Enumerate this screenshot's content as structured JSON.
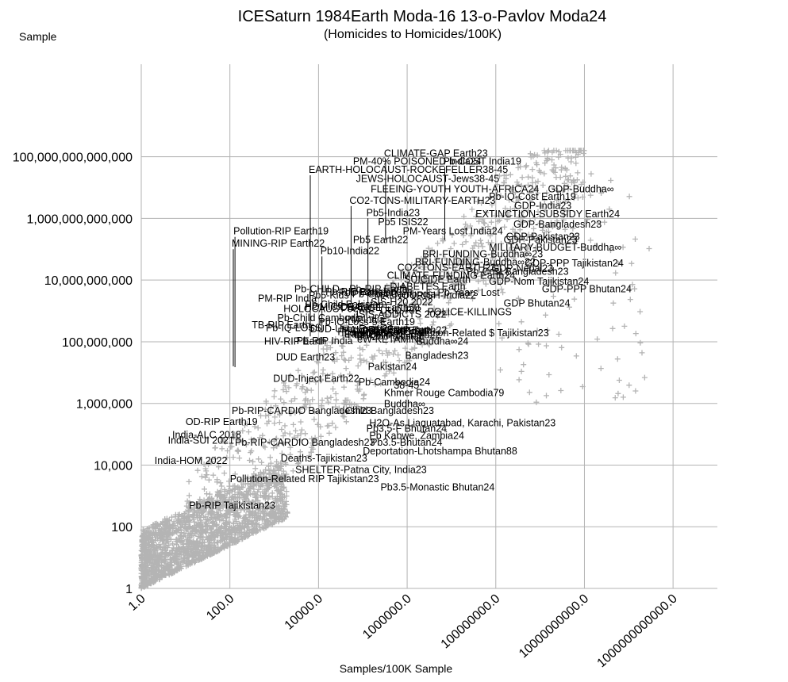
{
  "chart_data": {
    "type": "scatter",
    "title": "ICESaturn 1984Earth Moda-16 13-o-Pavlov Moda24",
    "subtitle": "(Homicides to Homicides/100K)",
    "xlabel": "Samples/100K Sample",
    "ylabel": "Sample",
    "x_scale": "log",
    "y_scale": "log",
    "xlim": [
      1,
      10000000000000
    ],
    "ylim": [
      1,
      100000000000000000
    ],
    "x_tick_values": [
      1,
      100,
      10000,
      1000000,
      100000000,
      10000000000,
      1000000000000
    ],
    "x_tick_labels": [
      "1.0",
      "100.0",
      "10000.0",
      "1000000.0",
      "100000000.0",
      "10000000000.0",
      "1000000000000.0"
    ],
    "y_tick_values": [
      1,
      100,
      10000,
      1000000,
      100000000,
      10000000000,
      1000000000000,
      100000000000000
    ],
    "y_tick_labels": [
      "1",
      "100",
      "10,000",
      "1,000,000",
      "100,000,000",
      "10,000,000,000",
      "1,000,000,000,000",
      "100,000,000,000,000"
    ],
    "grid": true,
    "marker": "+",
    "marker_color": "#b4b4b4",
    "grid_color": "#b3b3b3",
    "axis_color": "#b3b3b3",
    "scatter_points": {
      "count": 2600,
      "regions": [
        {
          "name": "core",
          "n": 1700,
          "log10x": [
            0,
            3.3
          ],
          "log10y": [
            0,
            4.2
          ]
        },
        {
          "name": "diagonal",
          "n": 800,
          "log10x": [
            1,
            10
          ],
          "log10y": [
            2,
            14
          ]
        },
        {
          "name": "upper-right",
          "n": 100,
          "log10x": [
            8,
            11.5
          ],
          "log10y": [
            6,
            13.5
          ]
        }
      ]
    },
    "annotations": [
      {
        "text": "CLIMATE-GAP Earth23",
        "x": 300000.0,
        "y": 100000000000000.0,
        "pin_y": 200000000000.0
      },
      {
        "text": "PM-40% POISONED India24",
        "x": 60000.0,
        "y": 55000000000000.0
      },
      {
        "text": "Pb-COST India19",
        "x": 6500000.0,
        "y": 55000000000000.0,
        "pin_y": 200000000000.0
      },
      {
        "text": "EARTH-HOLOCAUST-ROCKEFELLER38-45",
        "x": 6000.0,
        "y": 30000000000000.0,
        "pin_y": 150000000.0
      },
      {
        "text": "JEWS-HOLOCAUST-Jews38-45",
        "x": 70000.0,
        "y": 15000000000000.0
      },
      {
        "text": "GDP-Buddha∞",
        "x": 1500000000.0,
        "y": 7000000000000.0
      },
      {
        "text": "FLEEING-YOUTH YOUTH-AFRICA24",
        "x": 150000.0,
        "y": 7000000000000.0
      },
      {
        "text": "Pb-IQ-Cost Earth19",
        "x": 70000000.0,
        "y": 4000000000000.0
      },
      {
        "text": "CO2-TONS-MILITARY-EARTH23",
        "x": 50000.0,
        "y": 3000000000000.0,
        "pin_y": 2000000000.0
      },
      {
        "text": "GDP-India23",
        "x": 260000000.0,
        "y": 2000000000000.0
      },
      {
        "text": "Pb5-India23",
        "x": 120000.0,
        "y": 1200000000000.0,
        "pin_y": 1500000000.0
      },
      {
        "text": "EXTINCTION-SUBSIDY Earth24",
        "x": 35000000.0,
        "y": 1100000000000.0
      },
      {
        "text": "Pb5 ISIS22",
        "x": 220000.0,
        "y": 600000000000.0
      },
      {
        "text": "GDP-Bangladesh23",
        "x": 250000000.0,
        "y": 500000000000.0
      },
      {
        "text": "Pollution-RIP Earth19",
        "x": 120,
        "y": 300000000000.0,
        "pin_y": 15000000.0
      },
      {
        "text": "PM-Years Lost India24",
        "x": 800000.0,
        "y": 300000000000.0
      },
      {
        "text": "GDP-Pakistan23",
        "x": 170000000.0,
        "y": 200000000000.0
      },
      {
        "text": "Pb5 Earth22",
        "x": 60000.0,
        "y": 160000000000.0
      },
      {
        "text": "GDP-Pakistan23",
        "x": 150000000.0,
        "y": 160000000000.0
      },
      {
        "text": "MINING-RIP Earth22",
        "x": 110,
        "y": 120000000000.0,
        "pin_y": 16000000.0
      },
      {
        "text": "MILITARY-BUDGET-Buddha∞",
        "x": 70000000.0,
        "y": 90000000000.0
      },
      {
        "text": "Pb10-India22",
        "x": 11000.0,
        "y": 70000000000.0,
        "pin_y": 200000000.0
      },
      {
        "text": "BRI-FUNDING-Buddha∞23",
        "x": 2200000.0,
        "y": 55000000000.0
      },
      {
        "text": "BRI-FUNDING-Buddha∞22",
        "x": 1500000.0,
        "y": 30000000000.0
      },
      {
        "text": "GDP-PPP Tajikistan24",
        "x": 450000000.0,
        "y": 28000000000.0
      },
      {
        "text": "CO2-TONS-EARTH23",
        "x": 600000.0,
        "y": 20000000000.0
      },
      {
        "text": "GDP-Nepal23",
        "x": 80000000.0,
        "y": 19000000000.0
      },
      {
        "text": "Pb-Cost Bangladesh23",
        "x": 22000000.0,
        "y": 15000000000.0
      },
      {
        "text": "CLIMATE-FUNDING Earth24",
        "x": 350000.0,
        "y": 11000000000.0
      },
      {
        "text": "GDP-Nom Tajikistan24",
        "x": 70000000.0,
        "y": 7000000000.0
      },
      {
        "text": "GDP-PPP Bhutan24",
        "x": 1100000000.0,
        "y": 4000000000.0
      },
      {
        "text": "MALNOURISH-India22",
        "x": 180000.0,
        "y": 2500000000.0
      },
      {
        "text": "SIS-H20 2022",
        "x": 150000.0,
        "y": 1500000000.0
      },
      {
        "text": "GDP Bhutan24",
        "x": 150000000.0,
        "y": 1400000000.0
      },
      {
        "text": "CHANGE Earth50",
        "x": 30000.0,
        "y": 1000000000.0
      },
      {
        "text": "ISIS-ADDICTS 2022",
        "x": 70000.0,
        "y": 600000000.0
      },
      {
        "text": "Pb-IQ-Loss-5 Earth19",
        "x": 10000.0,
        "y": 350000000.0
      },
      {
        "text": "DUD-User Earth23",
        "x": 6500.0,
        "y": 200000000.0
      },
      {
        "text": "Pollution-Related $ Tajikistan23",
        "x": 1200000.0,
        "y": 150000000.0
      },
      {
        "text": "Pb5-Child-18 India22",
        "x": 45000.0,
        "y": 130000000.0
      },
      {
        "text": "Buddha∞24",
        "x": 1600000.0,
        "y": 80000000.0
      },
      {
        "text": "DUD Earth23",
        "x": 1100.0,
        "y": 25000000.0
      },
      {
        "text": "Bangladesh23",
        "x": 900000.0,
        "y": 28000000.0
      },
      {
        "text": "Pakistan24",
        "x": 130000.0,
        "y": 12000000.0
      },
      {
        "text": "DUD-Inject Earth22",
        "x": 950,
        "y": 5000000.0
      },
      {
        "text": "Pb-Cambodia24",
        "x": 80000.0,
        "y": 3800000.0
      },
      {
        "text": "38-45",
        "x": 500000.0,
        "y": 3000000.0
      },
      {
        "text": "Khmer Rouge Cambodia79",
        "x": 300000.0,
        "y": 1700000.0
      },
      {
        "text": "Buddha∞",
        "x": 300000.0,
        "y": 750000.0
      },
      {
        "text": "Pb-RIP-CARDIO Bangladesh23",
        "x": 110.0,
        "y": 450000.0
      },
      {
        "text": "Child Bangladesh23",
        "x": 40000.0,
        "y": 450000.0
      },
      {
        "text": "OD-RIP Earth19",
        "x": 10,
        "y": 200000.0
      },
      {
        "text": "H2O-As Liaquatabad, Karachi, Pakistan23",
        "x": 140000.0,
        "y": 180000.0
      },
      {
        "text": "Pb3.5-F Bhutan24",
        "x": 120000.0,
        "y": 120000.0
      },
      {
        "text": "India-ALC 2018",
        "x": 5,
        "y": 75000.0
      },
      {
        "text": "Pb Kabwe, Zambia24",
        "x": 140000.0,
        "y": 70000.0
      },
      {
        "text": "India-SUI 2021",
        "x": 4,
        "y": 50000.0
      },
      {
        "text": "Pb-RIP-CARDIO Bangladesh23",
        "x": 130.0,
        "y": 42000.0
      },
      {
        "text": "Pb3.5-Bhutan24",
        "x": 150000.0,
        "y": 42000.0
      },
      {
        "text": "Deportation-Lhotshampa Bhutan88",
        "x": 100000.0,
        "y": 22000.0
      },
      {
        "text": "Deaths-Tajikistan23",
        "x": 1400.0,
        "y": 13000.0
      },
      {
        "text": "India-HOM 2022",
        "x": 2,
        "y": 11000.0
      },
      {
        "text": "SHELTER-Patna City, India23",
        "x": 3000.0,
        "y": 5500.0
      },
      {
        "text": "Pollution-Related RIP Tajikistan23",
        "x": 100,
        "y": 2800.0
      },
      {
        "text": "Pb3.5-Monastic Bhutan24",
        "x": 250000.0,
        "y": 1500.0
      },
      {
        "text": "Pb-RIP Tajikistan23",
        "x": 12,
        "y": 380
      }
    ],
    "overlapping_labels": [
      "Pb-CHILD",
      "Pb-IQ-LOSS",
      "Earth24",
      "eW-KETAMINE",
      "CLIMATE-RIP",
      "India-DUD",
      "Pb-Years Lost",
      "POLICE-KILLINGS",
      "Pb-RIP Earth",
      "HOMICIDE Earth",
      "PM-RIP India",
      "Pb-RIP India",
      "SUICIDE Earth",
      "MALARIA Earth",
      "Pb5-Child Earth",
      "Pb-RIP Bangladesh",
      "TB-RIP Earth",
      "HIV-RIP Earth",
      "DIABETES Earth",
      "Pb-Cost Cambodia",
      "Pb5 Pakistan",
      "PM-India",
      "RIP Earth22",
      "DUD-RIP",
      "Pb-Child Pakistan",
      "HOLOCAUST Jews",
      "Pb5-Kids",
      "Pb-Child Cambodia",
      "Pb-RIP-CARDIO",
      "PM25 Pakistan"
    ]
  }
}
